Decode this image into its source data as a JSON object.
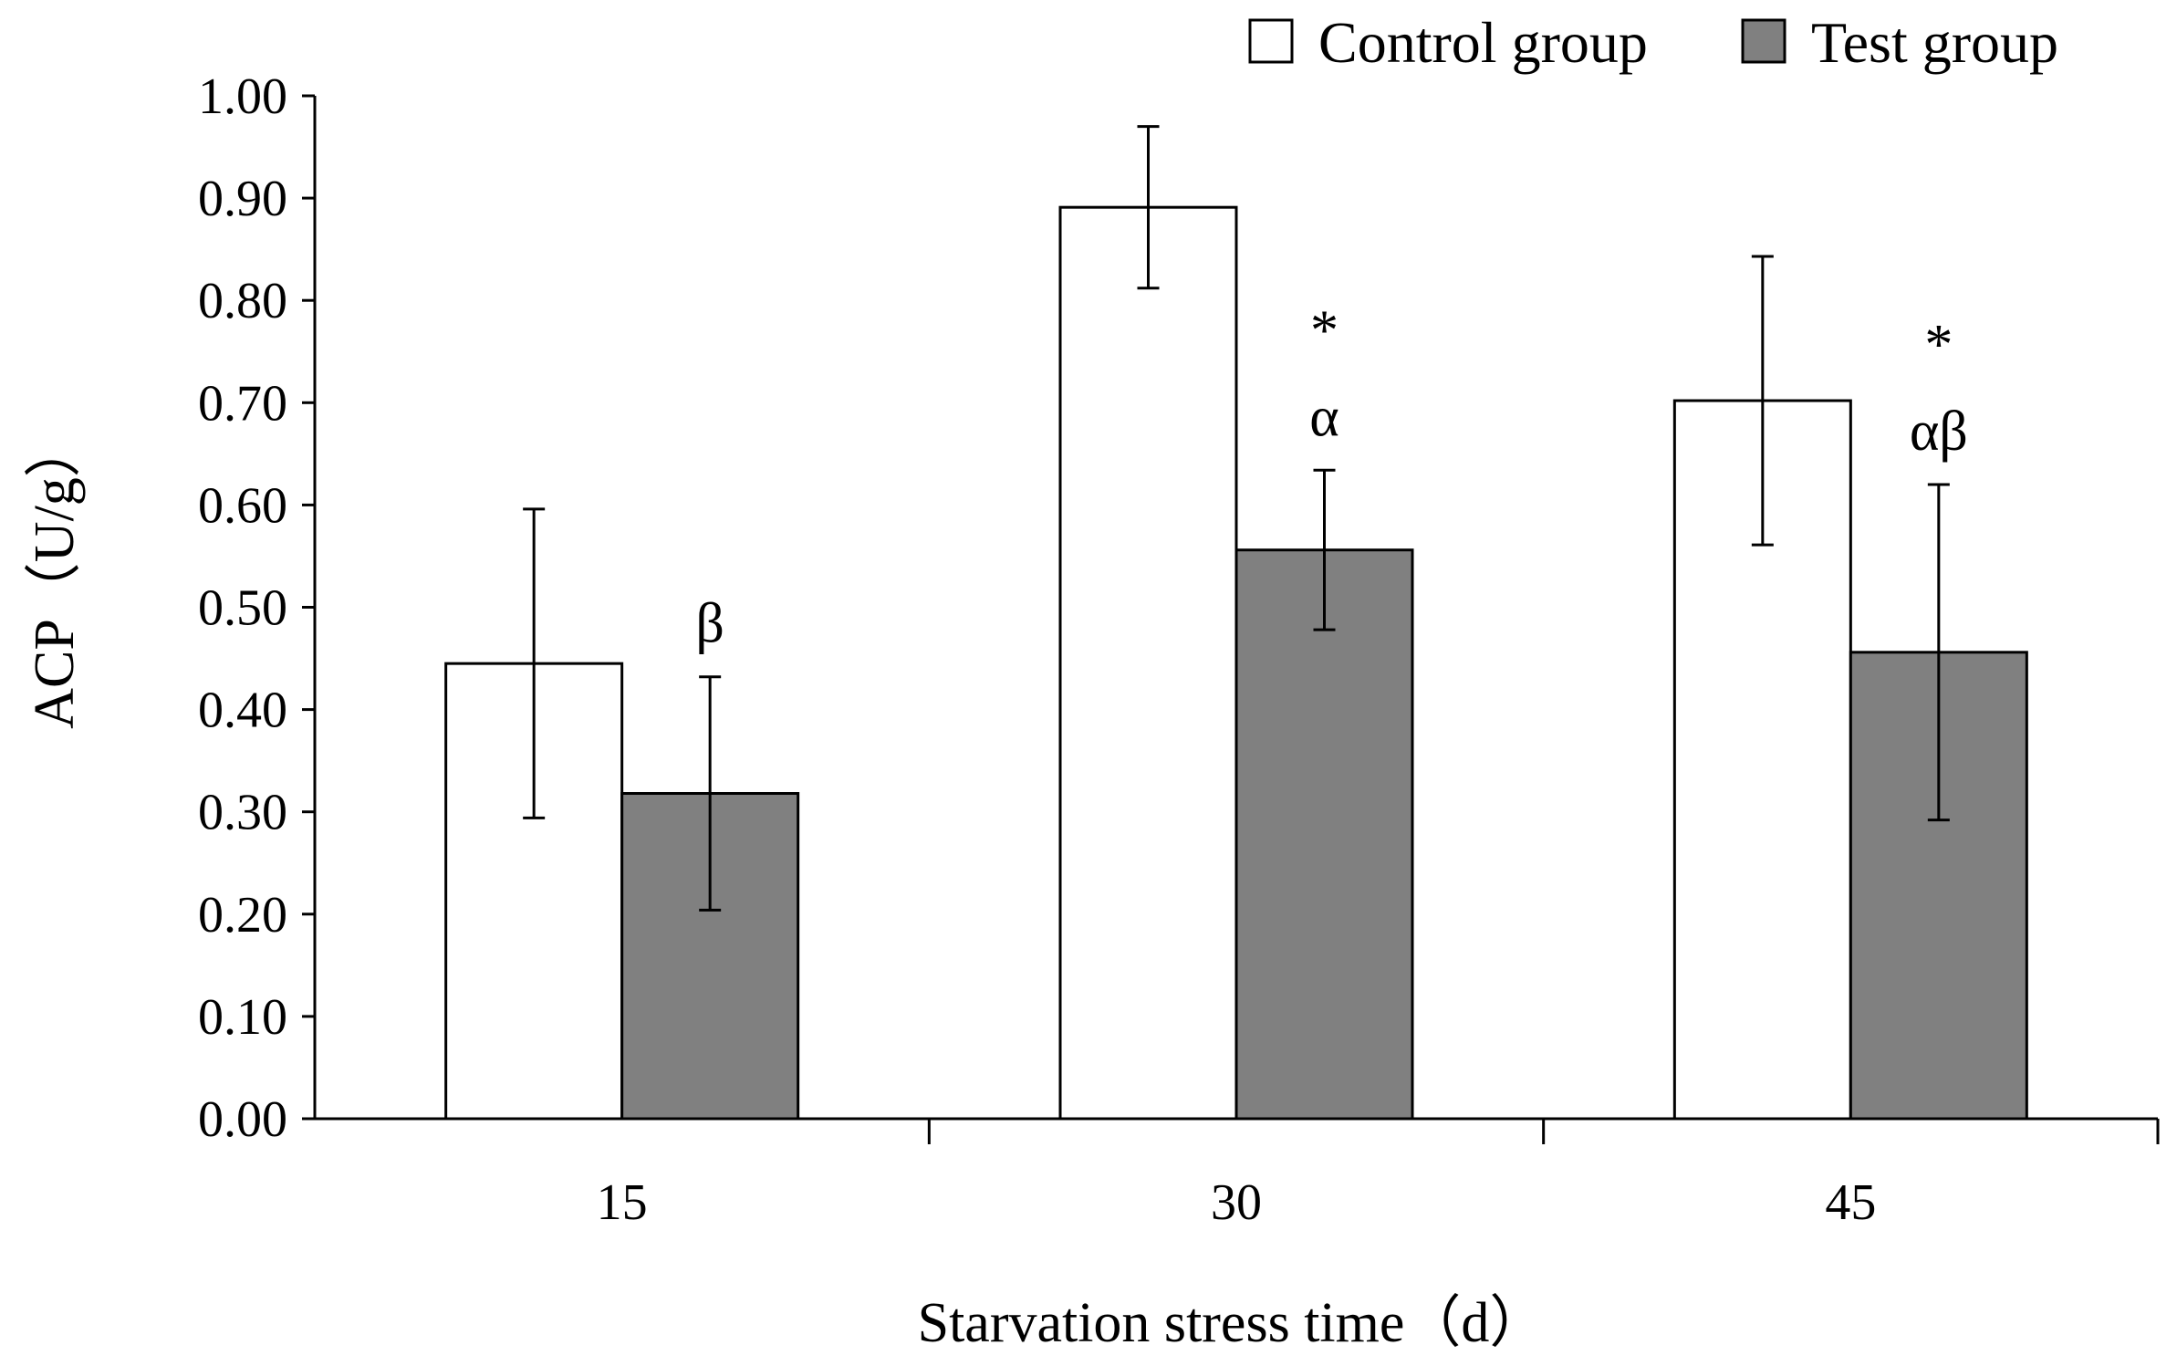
{
  "chart_data": {
    "type": "bar",
    "title": "",
    "xlabel": "Starvation stress time（d）",
    "ylabel": "ACP（U/g）",
    "ylim": [
      0,
      1.0
    ],
    "yticks": [
      "0.00",
      "0.10",
      "0.20",
      "0.30",
      "0.40",
      "0.50",
      "0.60",
      "0.70",
      "0.80",
      "0.90",
      "1.00"
    ],
    "categories": [
      "15",
      "30",
      "45"
    ],
    "grid": false,
    "legend_position": "top-right",
    "series": [
      {
        "name": "Control group",
        "values": [
          0.445,
          0.891,
          0.702
        ],
        "errors": [
          0.151,
          0.079,
          0.141
        ],
        "color": "#ffffff",
        "annotations": [
          "",
          "",
          ""
        ]
      },
      {
        "name": "Test group",
        "values": [
          0.318,
          0.556,
          0.456
        ],
        "errors": [
          0.114,
          0.078,
          0.164
        ],
        "color": "#808080",
        "annotations": [
          "β",
          "*\nα",
          "*\nαβ"
        ]
      }
    ]
  }
}
